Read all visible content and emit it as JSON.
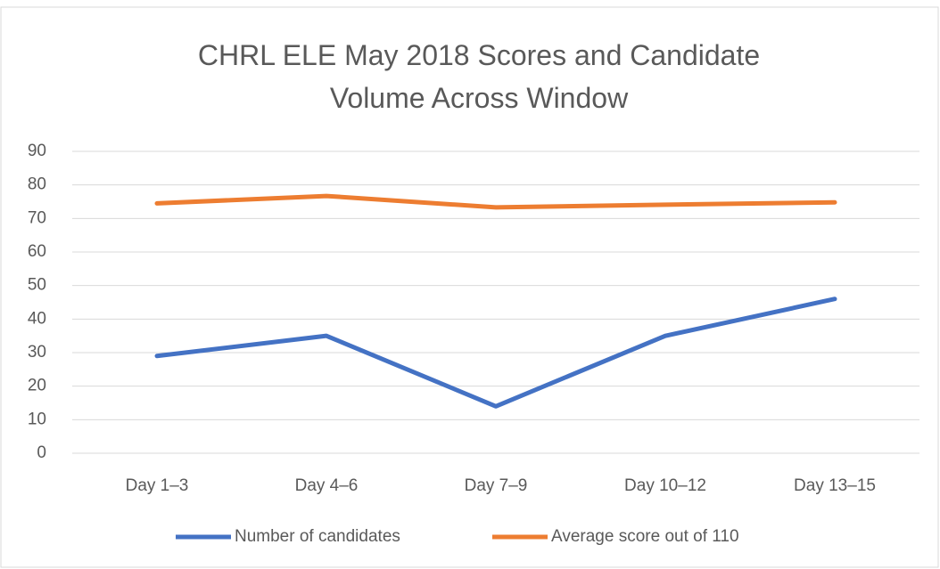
{
  "chart_data": {
    "type": "line",
    "title": "CHRL ELE May 2018 Scores and Candidate Volume Across Window",
    "categories": [
      "Day 1–3",
      "Day 4–6",
      "Day 7–9",
      "Day 10–12",
      "Day 13–15"
    ],
    "series": [
      {
        "name": "Number of candidates",
        "color": "#4472c4",
        "values": [
          29,
          35,
          14,
          35,
          46
        ]
      },
      {
        "name": "Average score out of 110",
        "color": "#ed7d31",
        "values": [
          74.5,
          76.7,
          73.3,
          74.1,
          74.8
        ]
      }
    ],
    "ylim": [
      0,
      90
    ],
    "yticks": [
      0,
      10,
      20,
      30,
      40,
      50,
      60,
      70,
      80,
      90
    ],
    "grid": true,
    "legend": "bottom"
  }
}
